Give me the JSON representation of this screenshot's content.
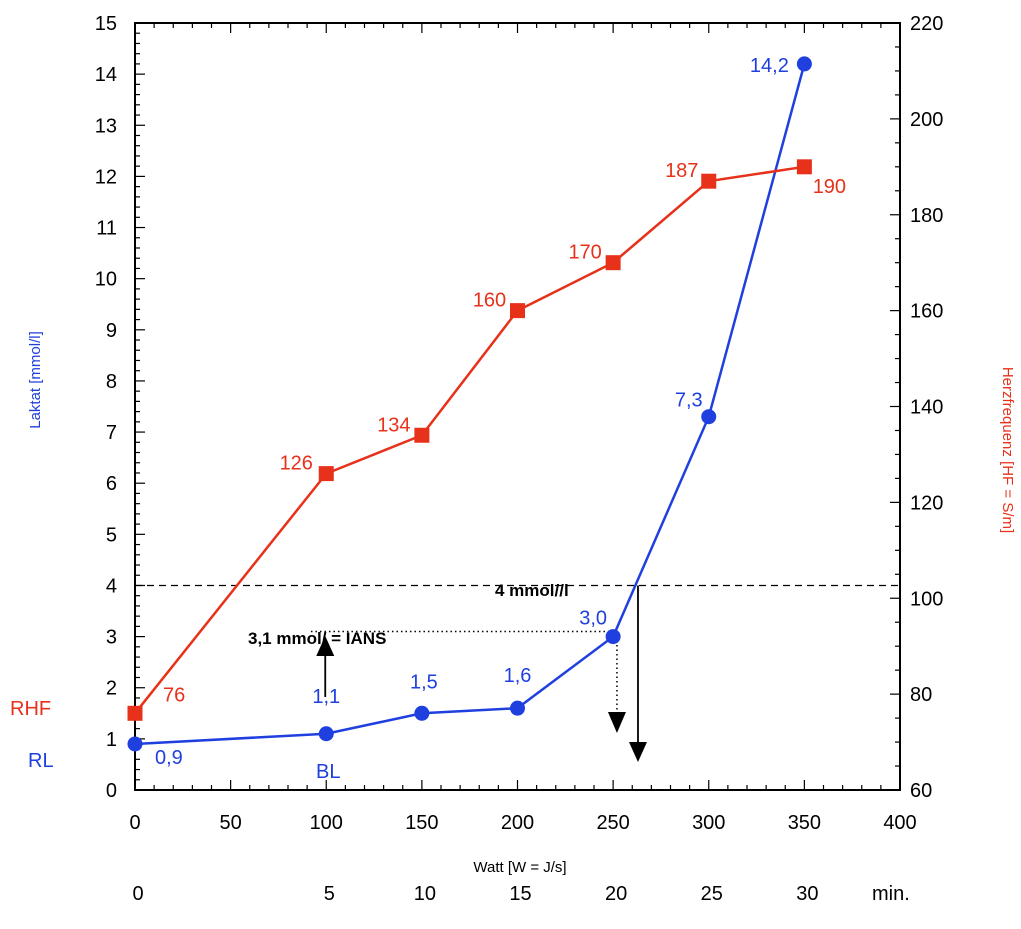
{
  "chart_data": {
    "type": "line",
    "x": [
      0,
      100,
      150,
      200,
      250,
      300,
      350
    ],
    "xlim": [
      0,
      400
    ],
    "x_ticks": [
      "0",
      "50",
      "100",
      "150",
      "200",
      "250",
      "300",
      "350",
      "400"
    ],
    "xlabel": "Watt [W = J/s]",
    "time_axis": {
      "labels": [
        "0",
        "5",
        "10",
        "15",
        "20",
        "25",
        "30"
      ],
      "unit": "min."
    },
    "left_axis": {
      "label": "Laktat  [mmol/l]",
      "lim": [
        0,
        15
      ],
      "ticks": [
        "0",
        "1",
        "2",
        "3",
        "4",
        "5",
        "6",
        "7",
        "8",
        "9",
        "10",
        "11",
        "12",
        "13",
        "14",
        "15"
      ],
      "color": "#1f3fdf"
    },
    "right_axis": {
      "label": "Herzfrequenz  [HF = S/m]",
      "lim": [
        60,
        220
      ],
      "ticks": [
        "60",
        "80",
        "100",
        "120",
        "140",
        "160",
        "180",
        "200",
        "220"
      ],
      "color": "#e8311a"
    },
    "series": [
      {
        "axis": "left",
        "color": "#1f3fdf",
        "marker": "circle",
        "values": [
          0.9,
          1.1,
          1.5,
          1.6,
          3.0,
          7.3,
          14.2
        ],
        "labels": [
          "0,9",
          "1,1",
          "1,5",
          "1,6",
          "3,0",
          "7,3",
          "14,2"
        ]
      },
      {
        "axis": "right",
        "color": "#e8311a",
        "marker": "square",
        "values": [
          76,
          126,
          134,
          160,
          170,
          187,
          190
        ],
        "labels": [
          "76",
          "126",
          "134",
          "160",
          "170",
          "187",
          "190"
        ]
      }
    ],
    "side_labels": {
      "rhf": "RHF",
      "rl": "RL",
      "bl": "BL"
    },
    "annotations": {
      "threshold_4": {
        "text": "4 mmol//l",
        "y": 4,
        "style": "dashed"
      },
      "ians": {
        "text": "3,1 mmol/  =  IANS",
        "y": 3.1,
        "style": "dotted"
      },
      "arrow_up_x": 100,
      "arrow_ians_x": 252,
      "arrow_4_x": 263
    },
    "grid": false
  }
}
